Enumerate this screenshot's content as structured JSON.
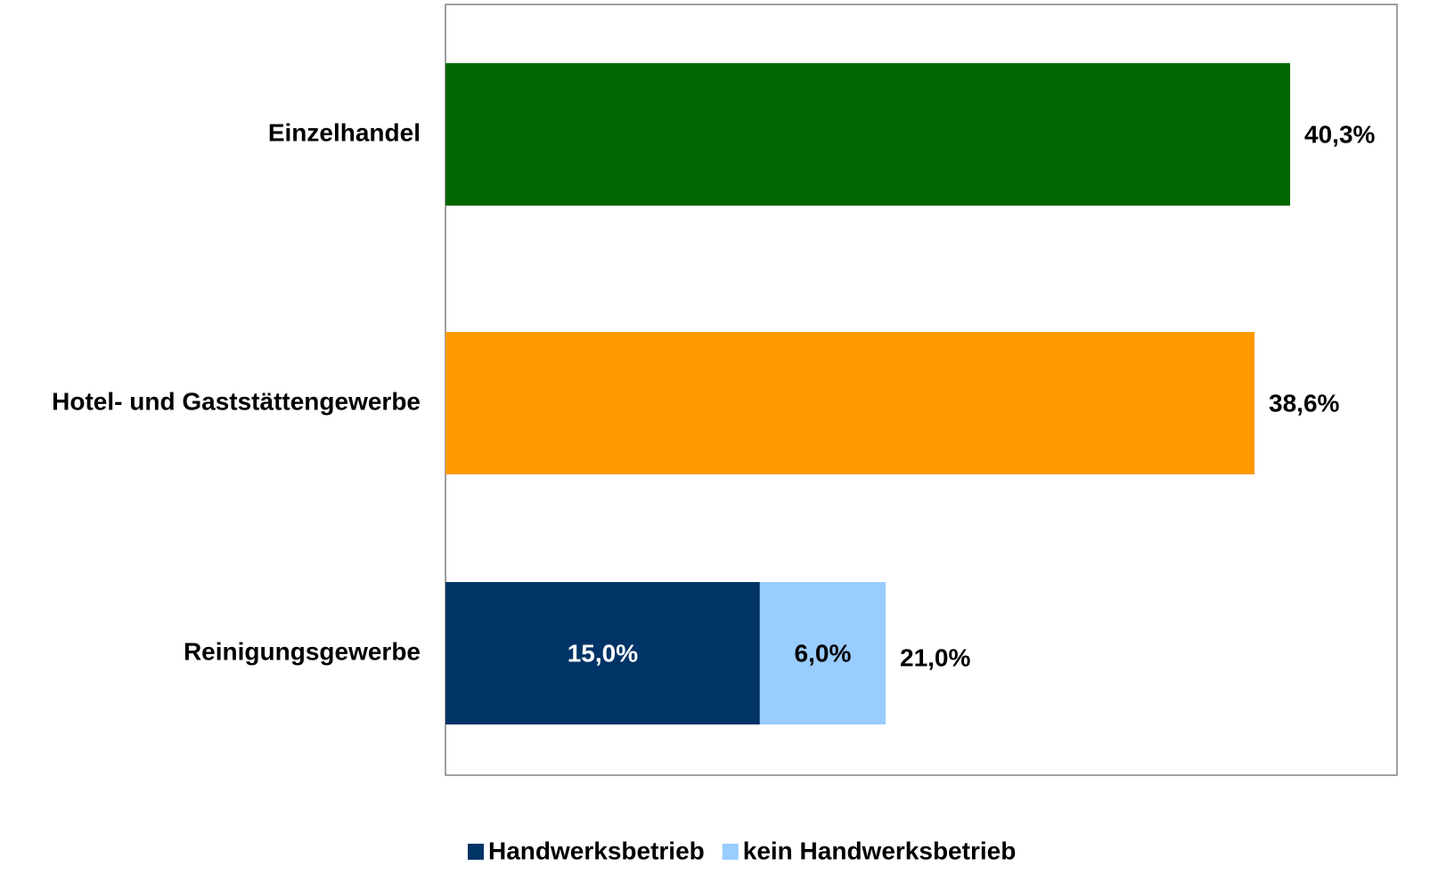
{
  "chart_data": {
    "type": "bar",
    "orientation": "horizontal",
    "categories": [
      "Einzelhandel",
      "Hotel- und Gaststättengewerbe",
      "Reinigungsgewerbe"
    ],
    "values": [
      40.3,
      38.6,
      21.0
    ],
    "value_labels": [
      "40,3%",
      "38,6%",
      "21,0%"
    ],
    "colors": [
      "#006600",
      "#ff9900",
      null
    ],
    "series": [
      {
        "name": "Handwerksbetrieb",
        "color": "#003366",
        "values": [
          null,
          null,
          15.0
        ],
        "value_labels": [
          null,
          null,
          "15,0%"
        ]
      },
      {
        "name": "kein Handwerksbetrieb",
        "color": "#99ccff",
        "values": [
          null,
          null,
          6.0
        ],
        "value_labels": [
          null,
          null,
          "6,0%"
        ]
      }
    ],
    "xlim": [
      0,
      45.4
    ],
    "legend": "bottom"
  }
}
